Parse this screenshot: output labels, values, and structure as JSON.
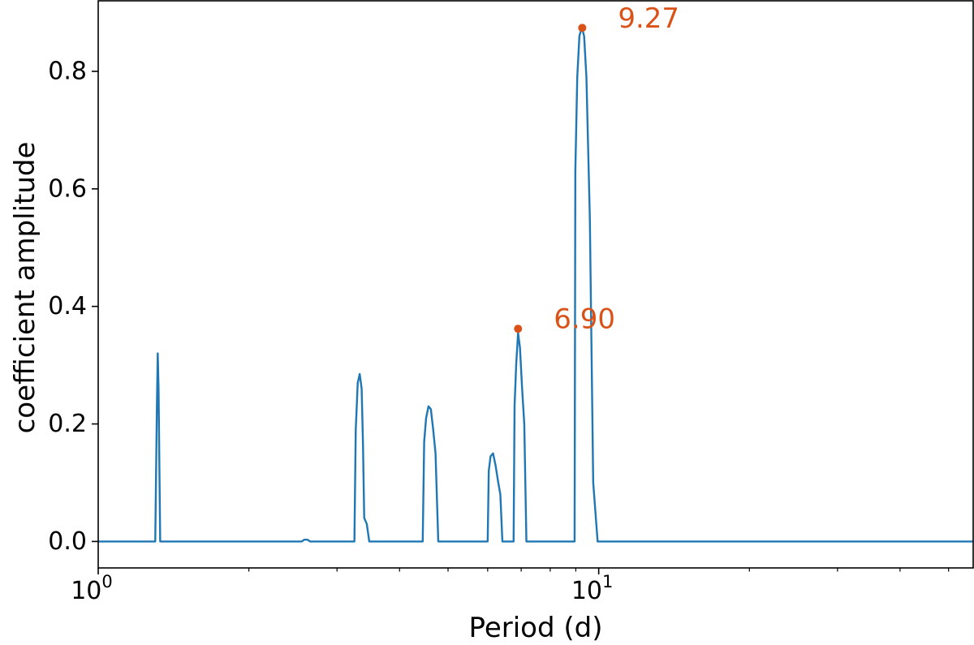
{
  "chart_data": {
    "type": "line",
    "title": "",
    "xlabel": "Period (d)",
    "ylabel": "coefficient amplitude",
    "xscale": "log",
    "xlim": [
      1.0,
      56.0
    ],
    "ylim": [
      -0.045,
      0.92
    ],
    "grid": false,
    "x_ticks": [
      {
        "value": 1,
        "base": "10",
        "exp": "0"
      },
      {
        "value": 10,
        "base": "10",
        "exp": "1"
      }
    ],
    "y_ticks": [
      {
        "value": 0.0,
        "label": "0.0"
      },
      {
        "value": 0.2,
        "label": "0.2"
      },
      {
        "value": 0.4,
        "label": "0.4"
      },
      {
        "value": 0.6,
        "label": "0.6"
      },
      {
        "value": 0.8,
        "label": "0.8"
      }
    ],
    "series": [
      {
        "color": "#1f77b4",
        "x": [
          1.0,
          1.3,
          1.31,
          1.315,
          1.32,
          1.325,
          1.33,
          1.335,
          1.34,
          1.35,
          2.55,
          2.58,
          2.62,
          2.65,
          3.25,
          3.27,
          3.3,
          3.33,
          3.36,
          3.38,
          3.4,
          3.44,
          3.48,
          4.45,
          4.48,
          4.52,
          4.57,
          4.62,
          4.67,
          4.72,
          4.78,
          6.0,
          6.03,
          6.08,
          6.15,
          6.22,
          6.3,
          6.36,
          6.42,
          6.76,
          6.79,
          6.84,
          6.9,
          6.96,
          7.03,
          7.1,
          7.17,
          8.95,
          8.98,
          9.06,
          9.15,
          9.25,
          9.35,
          9.45,
          9.6,
          9.75,
          9.95,
          56.0
        ],
        "y": [
          0.0,
          0.0,
          0.23,
          0.32,
          0.26,
          0.13,
          0.0,
          0.0,
          0.0,
          0.0,
          0.0,
          0.003,
          0.003,
          0.0,
          0.0,
          0.19,
          0.27,
          0.285,
          0.26,
          0.17,
          0.04,
          0.03,
          0.0,
          0.0,
          0.17,
          0.21,
          0.23,
          0.225,
          0.19,
          0.15,
          0.0,
          0.0,
          0.12,
          0.145,
          0.15,
          0.13,
          0.1,
          0.08,
          0.0,
          0.0,
          0.23,
          0.3,
          0.355,
          0.33,
          0.26,
          0.2,
          0.0,
          0.0,
          0.63,
          0.79,
          0.86,
          0.875,
          0.86,
          0.79,
          0.55,
          0.1,
          0.0,
          0.0
        ]
      }
    ],
    "markers": [
      {
        "x": 6.9,
        "y": 0.362,
        "label": "6.90"
      },
      {
        "x": 9.27,
        "y": 0.874,
        "label": "9.27"
      }
    ],
    "marker_color": "#d95319"
  }
}
